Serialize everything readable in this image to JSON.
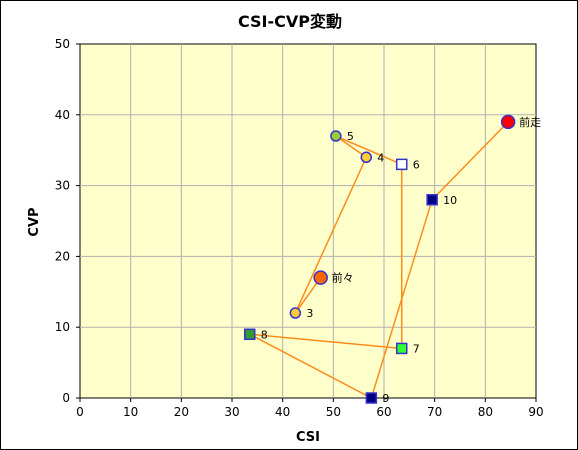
{
  "chart_data": {
    "type": "scatter",
    "title": "CSI-CVP変動",
    "xlabel": "CSI",
    "ylabel": "CVP",
    "xlim": [
      0,
      90
    ],
    "ylim": [
      0,
      50
    ],
    "xticks": [
      0,
      10,
      20,
      30,
      40,
      50,
      60,
      70,
      80,
      90
    ],
    "yticks": [
      0,
      10,
      20,
      30,
      40,
      50
    ],
    "grid": true,
    "plot_background": "#ffffcc",
    "line_color": "#ff8c1a",
    "points": [
      {
        "label": "前々",
        "x": 47.5,
        "y": 17,
        "marker": "circle-large",
        "fill": "#ff6600",
        "stroke": "#3333cc"
      },
      {
        "label": "3",
        "x": 42.5,
        "y": 12,
        "marker": "circle",
        "fill": "#ffcc33",
        "stroke": "#3333cc"
      },
      {
        "label": "4",
        "x": 56.5,
        "y": 34,
        "marker": "circle",
        "fill": "#ffcc33",
        "stroke": "#3333cc"
      },
      {
        "label": "5",
        "x": 50.5,
        "y": 37,
        "marker": "circle",
        "fill": "#99cc33",
        "stroke": "#3333cc"
      },
      {
        "label": "6",
        "x": 63.5,
        "y": 33,
        "marker": "square",
        "fill": "#ffffff",
        "stroke": "#3333cc"
      },
      {
        "label": "7",
        "x": 63.5,
        "y": 7,
        "marker": "square",
        "fill": "#33ff33",
        "stroke": "#3333cc"
      },
      {
        "label": "8",
        "x": 33.5,
        "y": 9,
        "marker": "square",
        "fill": "#339933",
        "stroke": "#3333cc"
      },
      {
        "label": "9",
        "x": 57.5,
        "y": 0,
        "marker": "square",
        "fill": "#000080",
        "stroke": "#3333cc"
      },
      {
        "label": "10",
        "x": 69.5,
        "y": 28,
        "marker": "square",
        "fill": "#000080",
        "stroke": "#3333cc"
      },
      {
        "label": "前走",
        "x": 84.5,
        "y": 39,
        "marker": "circle-large",
        "fill": "#ff0000",
        "stroke": "#3333cc"
      }
    ]
  }
}
